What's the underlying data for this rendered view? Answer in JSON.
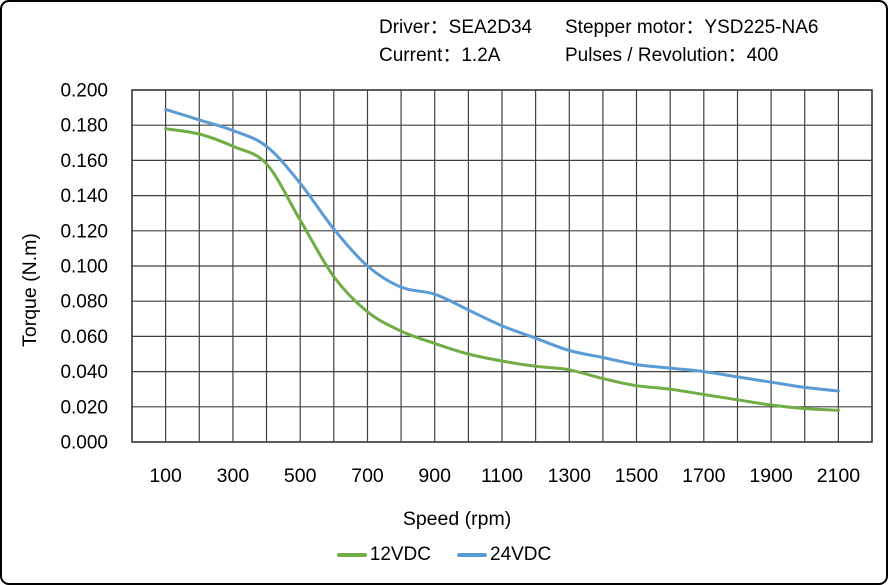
{
  "header": {
    "driver": "Driver：SEA2D34",
    "stepper_motor": "Stepper motor：YSD225-NA6",
    "current": "Current：1.2A",
    "pulses_per_rev": "Pulses / Revolution：400"
  },
  "chart_data": {
    "type": "line",
    "xlabel": "Speed (rpm)",
    "ylabel": "Torque (N.m)",
    "xlim": [
      0,
      2200
    ],
    "ylim": [
      0,
      0.2
    ],
    "grid": true,
    "x_grid_step": 100,
    "y_grid_step": 0.02,
    "x_tick_values": [
      100,
      300,
      500,
      700,
      900,
      1100,
      1300,
      1500,
      1700,
      1900,
      2100
    ],
    "x_tick_labels": [
      "100",
      "300",
      "500",
      "700",
      "900",
      "1100",
      "1300",
      "1500",
      "1700",
      "1900",
      "2100"
    ],
    "y_tick_values": [
      0.0,
      0.02,
      0.04,
      0.06,
      0.08,
      0.1,
      0.12,
      0.14,
      0.16,
      0.18,
      0.2
    ],
    "y_tick_labels": [
      "0.000",
      "0.020",
      "0.040",
      "0.060",
      "0.080",
      "0.100",
      "0.120",
      "0.140",
      "0.160",
      "0.180",
      "0.200"
    ],
    "x": [
      100,
      200,
      300,
      400,
      500,
      600,
      700,
      800,
      900,
      1000,
      1100,
      1200,
      1300,
      1400,
      1500,
      1600,
      1700,
      1800,
      1900,
      2000,
      2100
    ],
    "series": [
      {
        "name": "12VDC",
        "color": "#70AD47",
        "values": [
          0.178,
          0.175,
          0.168,
          0.158,
          0.126,
          0.094,
          0.074,
          0.063,
          0.056,
          0.05,
          0.046,
          0.043,
          0.041,
          0.036,
          0.032,
          0.03,
          0.027,
          0.024,
          0.021,
          0.019,
          0.018
        ]
      },
      {
        "name": "24VDC",
        "color": "#5B9BD5",
        "values": [
          0.189,
          0.183,
          0.177,
          0.168,
          0.147,
          0.121,
          0.1,
          0.088,
          0.084,
          0.075,
          0.066,
          0.059,
          0.052,
          0.048,
          0.044,
          0.042,
          0.04,
          0.037,
          0.034,
          0.031,
          0.029
        ]
      }
    ],
    "legend_position": "bottom"
  },
  "colors": {
    "background": "#ffffff",
    "border": "#000000",
    "grid": "#404040",
    "text": "#000000"
  }
}
